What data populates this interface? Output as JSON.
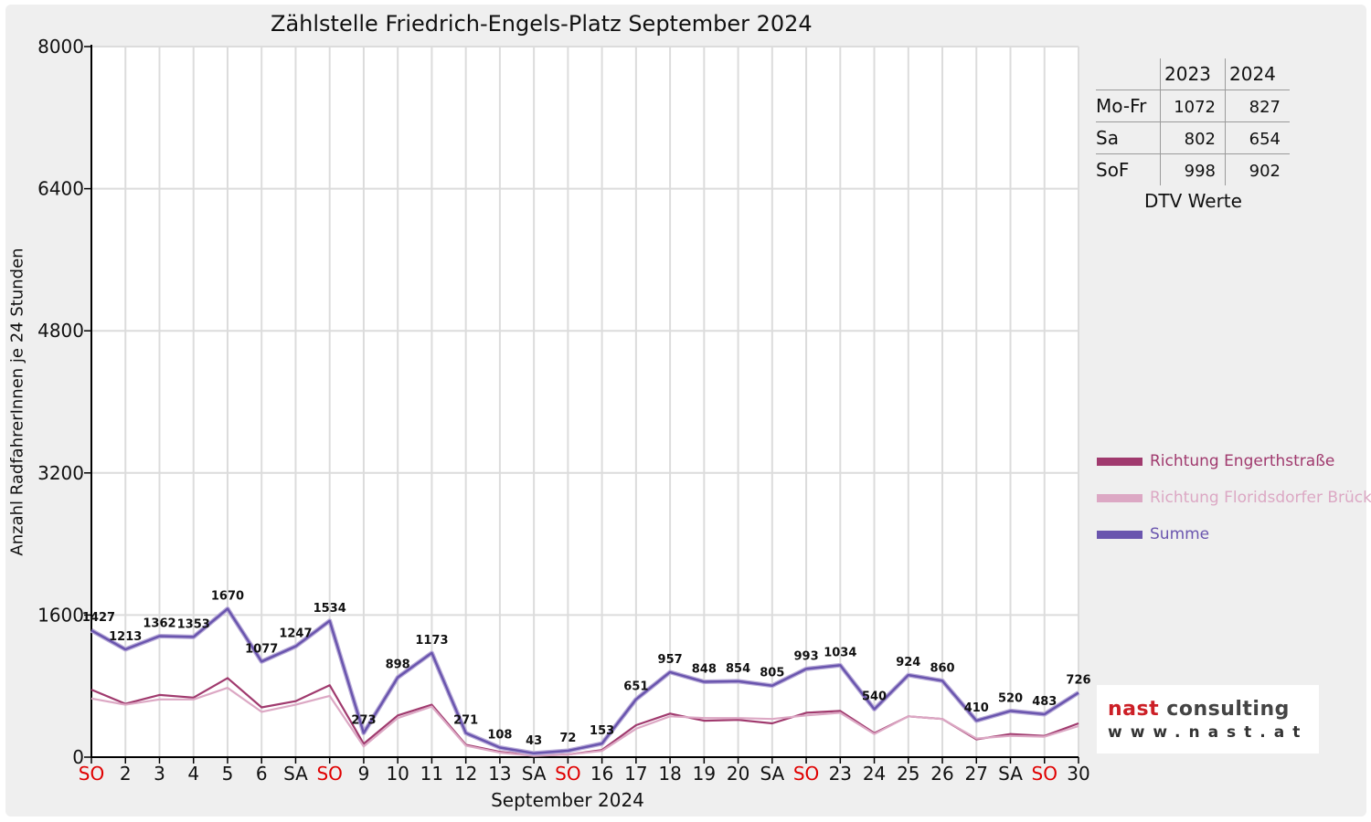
{
  "chart_data": {
    "type": "line",
    "title": "Zählstelle Friedrich-Engels-Platz September 2024",
    "xlabel": "September 2024",
    "ylabel": "Anzahl RadfahrerInnen je 24 Stunden",
    "ylim": [
      0,
      8000
    ],
    "yticks": [
      0,
      1600,
      3200,
      4800,
      6400,
      8000
    ],
    "categories": [
      "SO",
      "2",
      "3",
      "4",
      "5",
      "6",
      "SA",
      "SO",
      "9",
      "10",
      "11",
      "12",
      "13",
      "SA",
      "SO",
      "16",
      "17",
      "18",
      "19",
      "20",
      "SA",
      "SO",
      "23",
      "24",
      "25",
      "26",
      "27",
      "SA",
      "SO",
      "30"
    ],
    "highlight_categories": [
      "SO"
    ],
    "highlight_color": "#e00000",
    "grid": true,
    "legend_position": "right",
    "series": [
      {
        "name": "Richtung Engerthstraße",
        "color": "#a03a6e",
        "values": [
          760,
          600,
          700,
          670,
          890,
          560,
          630,
          810,
          150,
          470,
          590,
          140,
          60,
          20,
          30,
          80,
          360,
          490,
          410,
          420,
          380,
          500,
          520,
          270,
          460,
          430,
          200,
          260,
          240,
          380
        ]
      },
      {
        "name": "Richtung Floridsdorfer Brücke",
        "color": "#dca8c4",
        "values": [
          660,
          590,
          650,
          650,
          780,
          510,
          590,
          690,
          120,
          440,
          570,
          130,
          50,
          15,
          30,
          70,
          320,
          460,
          440,
          440,
          430,
          470,
          500,
          260,
          460,
          430,
          210,
          240,
          230,
          350
        ]
      },
      {
        "name": "Summe",
        "color": "#6a55ae",
        "values": [
          1427,
          1213,
          1362,
          1353,
          1670,
          1077,
          1247,
          1534,
          273,
          898,
          1173,
          271,
          108,
          43,
          72,
          153,
          651,
          957,
          848,
          854,
          805,
          993,
          1034,
          540,
          924,
          860,
          410,
          520,
          483,
          726
        ]
      }
    ],
    "data_labels": [
      "1427",
      "1213",
      "1362",
      "1353",
      "1670",
      "1077",
      "1247",
      "1534",
      "273",
      "898",
      "1173",
      "271",
      "108",
      "43",
      "72",
      "153",
      "651",
      "957",
      "848",
      "854",
      "805",
      "993",
      "1034",
      "540",
      "924",
      "860",
      "410",
      "520",
      "483",
      "726"
    ]
  },
  "dtv_table": {
    "headers": [
      "2023",
      "2024"
    ],
    "rows": [
      {
        "label": "Mo-Fr",
        "v2023": "1072",
        "v2024": "827"
      },
      {
        "label": "Sa",
        "v2023": "802",
        "v2024": "654"
      },
      {
        "label": "SoF",
        "v2023": "998",
        "v2024": "902"
      }
    ],
    "caption": "DTV Werte"
  },
  "logo": {
    "name_part1": "nast",
    "name_part2": " consulting",
    "url": "www.nast.at",
    "color1": "#cc1f26",
    "color2": "#444444"
  }
}
